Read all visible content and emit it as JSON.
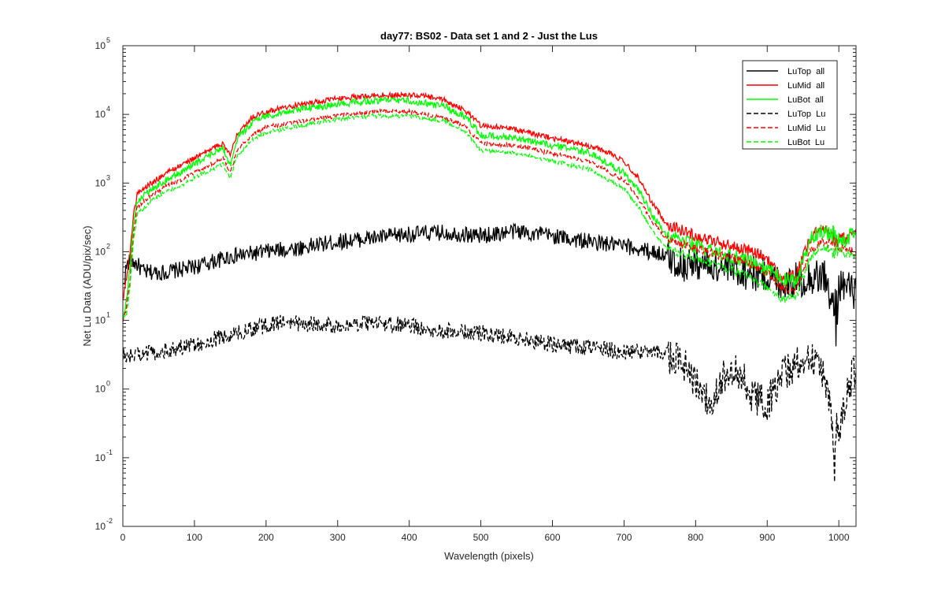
{
  "chart_data": {
    "type": "line",
    "title": "day77: BS02 - Data set 1 and 2 - Just the Lus",
    "xlabel": "Wavelength (pixels)",
    "ylabel": "Net Lu Data (ADU/pix/sec)",
    "xlim": [
      0,
      1024
    ],
    "ylim": [
      0.01,
      100000
    ],
    "yscale": "log",
    "xticks": [
      0,
      100,
      200,
      300,
      400,
      500,
      600,
      700,
      800,
      900,
      1000
    ],
    "yticks": [
      {
        "value": 0.01,
        "base": "10",
        "exp": "-2"
      },
      {
        "value": 0.1,
        "base": "10",
        "exp": "-1"
      },
      {
        "value": 1,
        "base": "10",
        "exp": "0"
      },
      {
        "value": 10,
        "base": "10",
        "exp": "1"
      },
      {
        "value": 100,
        "base": "10",
        "exp": "2"
      },
      {
        "value": 1000,
        "base": "10",
        "exp": "3"
      },
      {
        "value": 10000,
        "base": "10",
        "exp": "4"
      },
      {
        "value": 100000,
        "base": "10",
        "exp": "5"
      }
    ],
    "grid": false,
    "legend_position": "top-right",
    "series": [
      {
        "name": "LuTop  all",
        "color": "#000000",
        "dash": "solid",
        "noise": 0.12,
        "points": [
          [
            0,
            30
          ],
          [
            5,
            60
          ],
          [
            10,
            75
          ],
          [
            20,
            65
          ],
          [
            30,
            50
          ],
          [
            60,
            50
          ],
          [
            100,
            60
          ],
          [
            150,
            85
          ],
          [
            200,
            100
          ],
          [
            250,
            115
          ],
          [
            300,
            140
          ],
          [
            400,
            180
          ],
          [
            450,
            190
          ],
          [
            500,
            170
          ],
          [
            550,
            200
          ],
          [
            600,
            170
          ],
          [
            650,
            140
          ],
          [
            700,
            120
          ],
          [
            750,
            95
          ],
          [
            780,
            65
          ],
          [
            800,
            70
          ],
          [
            850,
            55
          ],
          [
            900,
            45
          ],
          [
            920,
            35
          ],
          [
            950,
            40
          ],
          [
            980,
            45
          ],
          [
            995,
            10
          ],
          [
            1000,
            35
          ],
          [
            1024,
            25
          ]
        ]
      },
      {
        "name": "LuMid  all",
        "color": "#ff0000",
        "dash": "solid",
        "noise": 0.04,
        "points": [
          [
            0,
            20
          ],
          [
            5,
            40
          ],
          [
            10,
            100
          ],
          [
            15,
            350
          ],
          [
            20,
            700
          ],
          [
            40,
            1000
          ],
          [
            60,
            1400
          ],
          [
            80,
            1800
          ],
          [
            100,
            2300
          ],
          [
            120,
            3000
          ],
          [
            140,
            3800
          ],
          [
            150,
            2500
          ],
          [
            160,
            5500
          ],
          [
            180,
            9000
          ],
          [
            200,
            11000
          ],
          [
            250,
            14000
          ],
          [
            300,
            17000
          ],
          [
            350,
            19000
          ],
          [
            400,
            19000
          ],
          [
            420,
            18500
          ],
          [
            450,
            16000
          ],
          [
            480,
            11000
          ],
          [
            500,
            7000
          ],
          [
            550,
            6000
          ],
          [
            600,
            4500
          ],
          [
            650,
            3500
          ],
          [
            680,
            2800
          ],
          [
            700,
            2000
          ],
          [
            720,
            1200
          ],
          [
            740,
            500
          ],
          [
            760,
            250
          ],
          [
            800,
            170
          ],
          [
            850,
            120
          ],
          [
            880,
            100
          ],
          [
            900,
            80
          ],
          [
            920,
            40
          ],
          [
            940,
            45
          ],
          [
            960,
            150
          ],
          [
            975,
            230
          ],
          [
            990,
            200
          ],
          [
            1000,
            180
          ],
          [
            1010,
            150
          ],
          [
            1024,
            200
          ]
        ]
      },
      {
        "name": "LuBot  all",
        "color": "#00ff00",
        "dash": "solid",
        "noise": 0.05,
        "points": [
          [
            0,
            10
          ],
          [
            5,
            20
          ],
          [
            10,
            60
          ],
          [
            15,
            250
          ],
          [
            20,
            550
          ],
          [
            40,
            800
          ],
          [
            60,
            1100
          ],
          [
            80,
            1400
          ],
          [
            100,
            1900
          ],
          [
            120,
            2500
          ],
          [
            140,
            3200
          ],
          [
            150,
            1800
          ],
          [
            160,
            4500
          ],
          [
            180,
            7500
          ],
          [
            200,
            9500
          ],
          [
            250,
            12000
          ],
          [
            300,
            14000
          ],
          [
            350,
            16000
          ],
          [
            400,
            16000
          ],
          [
            450,
            13000
          ],
          [
            480,
            9000
          ],
          [
            500,
            5000
          ],
          [
            550,
            4500
          ],
          [
            600,
            3500
          ],
          [
            650,
            2800
          ],
          [
            700,
            1400
          ],
          [
            720,
            800
          ],
          [
            740,
            330
          ],
          [
            760,
            170
          ],
          [
            800,
            120
          ],
          [
            850,
            85
          ],
          [
            880,
            70
          ],
          [
            900,
            55
          ],
          [
            920,
            40
          ],
          [
            940,
            35
          ],
          [
            960,
            150
          ],
          [
            975,
            200
          ],
          [
            990,
            180
          ],
          [
            1000,
            160
          ],
          [
            1010,
            140
          ],
          [
            1024,
            230
          ]
        ]
      },
      {
        "name": "LuTop  Lu",
        "color": "#000000",
        "dash": "dashed",
        "noise": 0.12,
        "points": [
          [
            0,
            3
          ],
          [
            50,
            3.5
          ],
          [
            100,
            4.5
          ],
          [
            150,
            6
          ],
          [
            200,
            8.5
          ],
          [
            220,
            9.5
          ],
          [
            250,
            9
          ],
          [
            300,
            8.5
          ],
          [
            350,
            9
          ],
          [
            400,
            8.5
          ],
          [
            450,
            7
          ],
          [
            500,
            6.5
          ],
          [
            550,
            5.5
          ],
          [
            600,
            4.5
          ],
          [
            650,
            4
          ],
          [
            700,
            3.5
          ],
          [
            750,
            3.5
          ],
          [
            780,
            2.5
          ],
          [
            800,
            1.2
          ],
          [
            820,
            0.6
          ],
          [
            840,
            1.5
          ],
          [
            860,
            1.8
          ],
          [
            880,
            0.8
          ],
          [
            900,
            0.6
          ],
          [
            920,
            1.5
          ],
          [
            940,
            2.3
          ],
          [
            960,
            2.8
          ],
          [
            975,
            2.2
          ],
          [
            985,
            1
          ],
          [
            995,
            0.12
          ],
          [
            1005,
            0.5
          ],
          [
            1015,
            1.2
          ],
          [
            1024,
            2
          ]
        ]
      },
      {
        "name": "LuMid  Lu",
        "color": "#ff0000",
        "dash": "dashed",
        "noise": 0.03,
        "points": [
          [
            0,
            10
          ],
          [
            5,
            15
          ],
          [
            10,
            40
          ],
          [
            15,
            200
          ],
          [
            20,
            450
          ],
          [
            40,
            650
          ],
          [
            60,
            900
          ],
          [
            80,
            1100
          ],
          [
            100,
            1400
          ],
          [
            120,
            1800
          ],
          [
            140,
            2300
          ],
          [
            150,
            1400
          ],
          [
            160,
            3000
          ],
          [
            180,
            5000
          ],
          [
            200,
            6500
          ],
          [
            250,
            8000
          ],
          [
            300,
            9500
          ],
          [
            350,
            11000
          ],
          [
            400,
            11000
          ],
          [
            450,
            9000
          ],
          [
            480,
            6500
          ],
          [
            500,
            3800
          ],
          [
            550,
            3500
          ],
          [
            600,
            2700
          ],
          [
            650,
            2100
          ],
          [
            700,
            1100
          ],
          [
            720,
            600
          ],
          [
            740,
            270
          ],
          [
            760,
            150
          ],
          [
            800,
            110
          ],
          [
            850,
            80
          ],
          [
            880,
            65
          ],
          [
            900,
            50
          ],
          [
            920,
            30
          ],
          [
            940,
            28
          ],
          [
            960,
            100
          ],
          [
            975,
            140
          ],
          [
            990,
            130
          ],
          [
            1000,
            120
          ],
          [
            1024,
            95
          ]
        ]
      },
      {
        "name": "LuBot  Lu",
        "color": "#00ff00",
        "dash": "dashed",
        "noise": 0.03,
        "points": [
          [
            0,
            10
          ],
          [
            5,
            12
          ],
          [
            10,
            30
          ],
          [
            15,
            150
          ],
          [
            20,
            350
          ],
          [
            40,
            550
          ],
          [
            60,
            750
          ],
          [
            80,
            900
          ],
          [
            100,
            1200
          ],
          [
            120,
            1500
          ],
          [
            140,
            1900
          ],
          [
            150,
            1200
          ],
          [
            160,
            2500
          ],
          [
            180,
            4200
          ],
          [
            200,
            5500
          ],
          [
            250,
            7000
          ],
          [
            300,
            8500
          ],
          [
            350,
            9500
          ],
          [
            400,
            9500
          ],
          [
            450,
            8000
          ],
          [
            480,
            5500
          ],
          [
            500,
            3000
          ],
          [
            550,
            2700
          ],
          [
            600,
            2100
          ],
          [
            650,
            1600
          ],
          [
            700,
            850
          ],
          [
            720,
            450
          ],
          [
            740,
            200
          ],
          [
            760,
            110
          ],
          [
            800,
            80
          ],
          [
            850,
            55
          ],
          [
            880,
            40
          ],
          [
            900,
            30
          ],
          [
            920,
            20
          ],
          [
            940,
            22
          ],
          [
            960,
            80
          ],
          [
            975,
            120
          ],
          [
            990,
            110
          ],
          [
            1000,
            100
          ],
          [
            1024,
            85
          ]
        ]
      }
    ]
  }
}
